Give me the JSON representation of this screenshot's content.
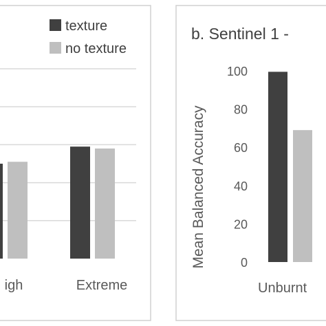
{
  "chart_data": [
    {
      "type": "bar",
      "title": "",
      "categories": [
        "High",
        "Extreme"
      ],
      "visible_category_labels": [
        "igh",
        "Extreme"
      ],
      "series": [
        {
          "name": "texture",
          "values": [
            50,
            59
          ],
          "color": "#404040"
        },
        {
          "name": "no texture",
          "values": [
            51,
            58
          ],
          "color": "#bfbfbf"
        }
      ],
      "ylim": [
        0,
        100
      ],
      "grid": true,
      "legend_position": "top-right"
    },
    {
      "type": "bar",
      "title": "b. Sentinel 1 -",
      "ylabel": "Mean Balanced Accuracy",
      "categories": [
        "Unburnt"
      ],
      "series": [
        {
          "name": "texture",
          "values": [
            99.5
          ],
          "color": "#404040"
        },
        {
          "name": "no texture",
          "values": [
            69
          ],
          "color": "#bfbfbf"
        }
      ],
      "yticks": [
        "0",
        "20",
        "40",
        "60",
        "80",
        "100"
      ],
      "ylim": [
        0,
        100
      ],
      "grid": false
    }
  ]
}
